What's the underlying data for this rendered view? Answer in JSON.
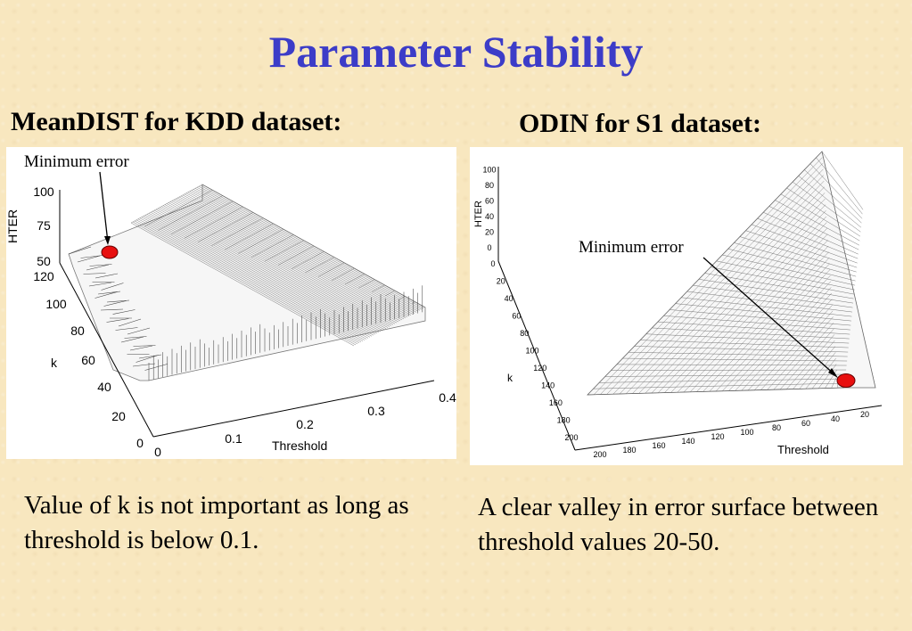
{
  "page": {
    "title": "Parameter Stability",
    "colors": {
      "title": "#3c3cc8",
      "background": "#f8e7bf",
      "marker": "#e81010"
    }
  },
  "left": {
    "heading": "MeanDIST for KDD dataset:",
    "annotation": "Minimum error",
    "caption": "Value of k is not important as long as threshold is below 0.1."
  },
  "right": {
    "heading": "ODIN for S1 dataset:",
    "annotation": "Minimum error",
    "caption": "A clear valley in error surface between threshold values 20-50."
  },
  "chart_data": [
    {
      "type": "surface",
      "zlabel": "HTER",
      "ylabel": "k",
      "xlabel": "Threshold",
      "z_ticks": [
        "50",
        "75",
        "100"
      ],
      "y_ticks": [
        "0",
        "20",
        "40",
        "60",
        "80",
        "100",
        "120"
      ],
      "x_ticks": [
        "0",
        "0.1",
        "0.2",
        "0.3",
        "0.4"
      ],
      "minimum_marker": "Minimum error"
    },
    {
      "type": "surface",
      "zlabel": "HTER",
      "ylabel": "k",
      "xlabel": "Threshold",
      "z_ticks": [
        "0",
        "20",
        "40",
        "60",
        "80",
        "100"
      ],
      "y_ticks": [
        "0",
        "20",
        "40",
        "60",
        "80",
        "100",
        "120",
        "140",
        "160",
        "180",
        "200"
      ],
      "x_ticks": [
        "200",
        "180",
        "160",
        "140",
        "120",
        "100",
        "80",
        "60",
        "40",
        "20"
      ],
      "minimum_marker": "Minimum error"
    }
  ]
}
